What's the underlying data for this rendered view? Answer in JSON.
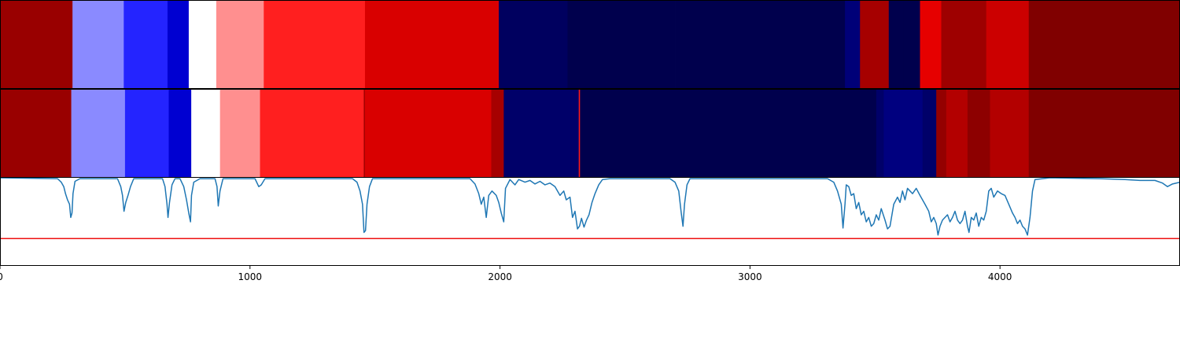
{
  "chart_data": [
    {
      "type": "heatmap",
      "title": "",
      "xlim": [
        0,
        4720
      ],
      "colormap": "seismic",
      "value_range": [
        -1,
        1
      ],
      "segments": [
        {
          "start": 0,
          "end": 290,
          "value": 0.9
        },
        {
          "start": 290,
          "end": 495,
          "value": -0.23
        },
        {
          "start": 495,
          "end": 670,
          "value": -0.43
        },
        {
          "start": 670,
          "end": 755,
          "value": -0.63
        },
        {
          "start": 755,
          "end": 865,
          "value": 0.0
        },
        {
          "start": 865,
          "end": 1055,
          "value": 0.22
        },
        {
          "start": 1055,
          "end": 1460,
          "value": 0.44
        },
        {
          "start": 1460,
          "end": 1995,
          "value": 0.65
        },
        {
          "start": 1995,
          "end": 2270,
          "value": -0.95
        },
        {
          "start": 2270,
          "end": 2700,
          "value": -1.0
        },
        {
          "start": 2700,
          "end": 3380,
          "value": -1.0
        },
        {
          "start": 3380,
          "end": 3440,
          "value": -0.88
        },
        {
          "start": 3440,
          "end": 3555,
          "value": 0.85
        },
        {
          "start": 3555,
          "end": 3615,
          "value": -1.0
        },
        {
          "start": 3615,
          "end": 3680,
          "value": -1.0
        },
        {
          "start": 3680,
          "end": 3765,
          "value": 0.6
        },
        {
          "start": 3765,
          "end": 3945,
          "value": 0.88
        },
        {
          "start": 3945,
          "end": 4115,
          "value": 0.7
        },
        {
          "start": 4115,
          "end": 4720,
          "value": 1.0
        }
      ]
    },
    {
      "type": "heatmap",
      "title": "",
      "xlim": [
        0,
        4720
      ],
      "colormap": "seismic",
      "value_range": [
        -1,
        1
      ],
      "segments": [
        {
          "start": 0,
          "end": 285,
          "value": 0.9
        },
        {
          "start": 285,
          "end": 500,
          "value": -0.23
        },
        {
          "start": 500,
          "end": 675,
          "value": -0.43
        },
        {
          "start": 675,
          "end": 765,
          "value": -0.63
        },
        {
          "start": 765,
          "end": 880,
          "value": 0.0
        },
        {
          "start": 880,
          "end": 1040,
          "value": 0.22
        },
        {
          "start": 1040,
          "end": 1455,
          "value": 0.44
        },
        {
          "start": 1455,
          "end": 1460,
          "value": 0.85
        },
        {
          "start": 1460,
          "end": 1965,
          "value": 0.65
        },
        {
          "start": 1965,
          "end": 2015,
          "value": 0.85
        },
        {
          "start": 2015,
          "end": 2315,
          "value": -0.92
        },
        {
          "start": 2315,
          "end": 2320,
          "value": 0.45
        },
        {
          "start": 2320,
          "end": 2735,
          "value": -1.0
        },
        {
          "start": 2735,
          "end": 3365,
          "value": -1.0
        },
        {
          "start": 3365,
          "end": 3505,
          "value": -1.0
        },
        {
          "start": 3505,
          "end": 3535,
          "value": -0.92
        },
        {
          "start": 3535,
          "end": 3690,
          "value": -0.86
        },
        {
          "start": 3690,
          "end": 3745,
          "value": -0.92
        },
        {
          "start": 3745,
          "end": 3785,
          "value": 0.92
        },
        {
          "start": 3785,
          "end": 3870,
          "value": 0.8
        },
        {
          "start": 3870,
          "end": 3960,
          "value": 0.95
        },
        {
          "start": 3960,
          "end": 4115,
          "value": 0.8
        },
        {
          "start": 4115,
          "end": 4720,
          "value": 1.0
        }
      ]
    },
    {
      "type": "line",
      "title": "",
      "xlabel": "",
      "ylabel": "",
      "xlim": [
        0,
        4720
      ],
      "ylim": [
        0,
        1
      ],
      "xticks": [
        0,
        1000,
        2000,
        3000,
        4000
      ],
      "xtick_labels": [
        "0",
        "1000",
        "2000",
        "3000",
        "4000"
      ],
      "threshold": {
        "y": 0.31,
        "color": "#ee1111"
      },
      "series": [
        {
          "color": "#1f77b4",
          "points": [
            [
              0,
              1.0
            ],
            [
              230,
              0.99
            ],
            [
              245,
              0.95
            ],
            [
              255,
              0.9
            ],
            [
              262,
              0.82
            ],
            [
              270,
              0.75
            ],
            [
              278,
              0.7
            ],
            [
              283,
              0.55
            ],
            [
              288,
              0.6
            ],
            [
              292,
              0.82
            ],
            [
              300,
              0.96
            ],
            [
              320,
              0.99
            ],
            [
              470,
              0.99
            ],
            [
              483,
              0.9
            ],
            [
              490,
              0.8
            ],
            [
              496,
              0.62
            ],
            [
              503,
              0.72
            ],
            [
              512,
              0.8
            ],
            [
              522,
              0.9
            ],
            [
              535,
              0.99
            ],
            [
              650,
              0.99
            ],
            [
              660,
              0.9
            ],
            [
              668,
              0.7
            ],
            [
              672,
              0.55
            ],
            [
              678,
              0.72
            ],
            [
              688,
              0.92
            ],
            [
              700,
              0.99
            ],
            [
              720,
              0.99
            ],
            [
              735,
              0.9
            ],
            [
              746,
              0.75
            ],
            [
              755,
              0.6
            ],
            [
              762,
              0.5
            ],
            [
              766,
              0.8
            ],
            [
              775,
              0.95
            ],
            [
              800,
              0.99
            ],
            [
              860,
              0.99
            ],
            [
              868,
              0.9
            ],
            [
              873,
              0.68
            ],
            [
              880,
              0.85
            ],
            [
              892,
              0.99
            ],
            [
              1020,
              0.99
            ],
            [
              1035,
              0.9
            ],
            [
              1045,
              0.92
            ],
            [
              1060,
              0.99
            ],
            [
              1410,
              0.99
            ],
            [
              1428,
              0.95
            ],
            [
              1440,
              0.85
            ],
            [
              1450,
              0.7
            ],
            [
              1456,
              0.38
            ],
            [
              1462,
              0.4
            ],
            [
              1468,
              0.7
            ],
            [
              1478,
              0.9
            ],
            [
              1490,
              0.99
            ],
            [
              1880,
              0.99
            ],
            [
              1900,
              0.93
            ],
            [
              1915,
              0.82
            ],
            [
              1925,
              0.7
            ],
            [
              1935,
              0.78
            ],
            [
              1945,
              0.55
            ],
            [
              1955,
              0.8
            ],
            [
              1968,
              0.85
            ],
            [
              1985,
              0.8
            ],
            [
              1995,
              0.72
            ],
            [
              2005,
              0.6
            ],
            [
              2015,
              0.5
            ],
            [
              2022,
              0.88
            ],
            [
              2040,
              0.98
            ],
            [
              2060,
              0.92
            ],
            [
              2075,
              0.98
            ],
            [
              2100,
              0.95
            ],
            [
              2120,
              0.97
            ],
            [
              2140,
              0.93
            ],
            [
              2160,
              0.96
            ],
            [
              2180,
              0.92
            ],
            [
              2200,
              0.94
            ],
            [
              2220,
              0.9
            ],
            [
              2240,
              0.8
            ],
            [
              2255,
              0.85
            ],
            [
              2265,
              0.75
            ],
            [
              2280,
              0.78
            ],
            [
              2290,
              0.55
            ],
            [
              2300,
              0.62
            ],
            [
              2310,
              0.42
            ],
            [
              2318,
              0.45
            ],
            [
              2326,
              0.54
            ],
            [
              2336,
              0.44
            ],
            [
              2346,
              0.52
            ],
            [
              2356,
              0.58
            ],
            [
              2368,
              0.72
            ],
            [
              2380,
              0.82
            ],
            [
              2395,
              0.92
            ],
            [
              2410,
              0.98
            ],
            [
              2440,
              0.99
            ],
            [
              2680,
              0.99
            ],
            [
              2700,
              0.95
            ],
            [
              2715,
              0.85
            ],
            [
              2725,
              0.6
            ],
            [
              2732,
              0.45
            ],
            [
              2738,
              0.7
            ],
            [
              2748,
              0.92
            ],
            [
              2760,
              0.99
            ],
            [
              3310,
              0.99
            ],
            [
              3335,
              0.95
            ],
            [
              3350,
              0.85
            ],
            [
              3365,
              0.7
            ],
            [
              3372,
              0.43
            ],
            [
              3380,
              0.7
            ],
            [
              3385,
              0.92
            ],
            [
              3395,
              0.9
            ],
            [
              3405,
              0.8
            ],
            [
              3415,
              0.82
            ],
            [
              3425,
              0.65
            ],
            [
              3435,
              0.72
            ],
            [
              3445,
              0.58
            ],
            [
              3455,
              0.62
            ],
            [
              3465,
              0.5
            ],
            [
              3475,
              0.55
            ],
            [
              3485,
              0.45
            ],
            [
              3495,
              0.48
            ],
            [
              3505,
              0.58
            ],
            [
              3515,
              0.52
            ],
            [
              3525,
              0.65
            ],
            [
              3540,
              0.52
            ],
            [
              3550,
              0.42
            ],
            [
              3560,
              0.45
            ],
            [
              3575,
              0.7
            ],
            [
              3590,
              0.78
            ],
            [
              3600,
              0.72
            ],
            [
              3610,
              0.85
            ],
            [
              3620,
              0.75
            ],
            [
              3630,
              0.88
            ],
            [
              3650,
              0.82
            ],
            [
              3665,
              0.88
            ],
            [
              3680,
              0.8
            ],
            [
              3700,
              0.7
            ],
            [
              3715,
              0.62
            ],
            [
              3725,
              0.5
            ],
            [
              3735,
              0.55
            ],
            [
              3745,
              0.48
            ],
            [
              3752,
              0.35
            ],
            [
              3760,
              0.45
            ],
            [
              3770,
              0.52
            ],
            [
              3780,
              0.55
            ],
            [
              3790,
              0.58
            ],
            [
              3800,
              0.5
            ],
            [
              3810,
              0.55
            ],
            [
              3820,
              0.62
            ],
            [
              3830,
              0.52
            ],
            [
              3840,
              0.48
            ],
            [
              3850,
              0.52
            ],
            [
              3860,
              0.62
            ],
            [
              3870,
              0.45
            ],
            [
              3876,
              0.38
            ],
            [
              3885,
              0.55
            ],
            [
              3895,
              0.52
            ],
            [
              3905,
              0.6
            ],
            [
              3915,
              0.45
            ],
            [
              3925,
              0.55
            ],
            [
              3935,
              0.52
            ],
            [
              3945,
              0.62
            ],
            [
              3955,
              0.85
            ],
            [
              3965,
              0.88
            ],
            [
              3975,
              0.78
            ],
            [
              3990,
              0.85
            ],
            [
              4005,
              0.82
            ],
            [
              4020,
              0.8
            ],
            [
              4035,
              0.7
            ],
            [
              4050,
              0.6
            ],
            [
              4060,
              0.55
            ],
            [
              4070,
              0.48
            ],
            [
              4080,
              0.52
            ],
            [
              4090,
              0.45
            ],
            [
              4100,
              0.42
            ],
            [
              4110,
              0.35
            ],
            [
              4120,
              0.55
            ],
            [
              4130,
              0.85
            ],
            [
              4140,
              0.98
            ],
            [
              4200,
              1.0
            ],
            [
              4400,
              0.99
            ],
            [
              4500,
              0.98
            ],
            [
              4560,
              0.97
            ],
            [
              4620,
              0.97
            ],
            [
              4650,
              0.94
            ],
            [
              4670,
              0.9
            ],
            [
              4690,
              0.93
            ],
            [
              4720,
              0.95
            ]
          ]
        }
      ]
    }
  ]
}
